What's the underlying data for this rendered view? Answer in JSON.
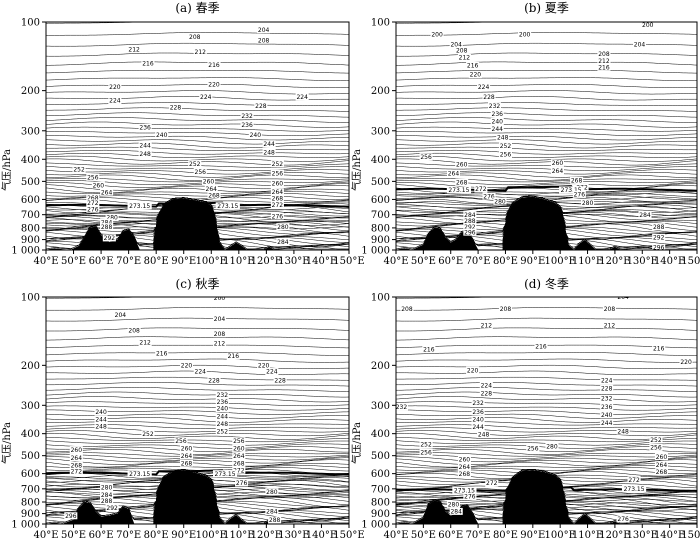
{
  "chart_data": [
    {
      "type": "contour",
      "title": "(a) 春季",
      "ylabel": "气压/hPa",
      "xlim": [
        40,
        150
      ],
      "ylim": [
        1000,
        100
      ],
      "yscale": "log",
      "xticks": [
        "40°E",
        "50°E",
        "60°E",
        "70°E",
        "80°E",
        "90°E",
        "100°E",
        "110°E",
        "120°E",
        "130°E",
        "140°E",
        "150°E"
      ],
      "yticks": [
        "100",
        "200",
        "300",
        "400",
        "500",
        "600",
        "700",
        "800",
        "900",
        "1 000"
      ],
      "contour_interval": 2,
      "tropopause_value": 273.15,
      "tropopause_pressure": 640,
      "contour_labels": [
        {
          "text": "204",
          "lon": 119,
          "p": 108
        },
        {
          "text": "208",
          "lon": 94,
          "p": 116
        },
        {
          "text": "208",
          "lon": 119,
          "p": 120
        },
        {
          "text": "212",
          "lon": 72,
          "p": 132
        },
        {
          "text": "212",
          "lon": 96,
          "p": 135
        },
        {
          "text": "216",
          "lon": 77,
          "p": 152
        },
        {
          "text": "216",
          "lon": 101,
          "p": 154
        },
        {
          "text": "220",
          "lon": 65,
          "p": 192
        },
        {
          "text": "220",
          "lon": 101,
          "p": 188
        },
        {
          "text": "224",
          "lon": 65,
          "p": 221
        },
        {
          "text": "224",
          "lon": 98,
          "p": 213
        },
        {
          "text": "224",
          "lon": 133,
          "p": 213
        },
        {
          "text": "228",
          "lon": 87,
          "p": 237
        },
        {
          "text": "228",
          "lon": 118,
          "p": 233
        },
        {
          "text": "232",
          "lon": 113,
          "p": 258
        },
        {
          "text": "236",
          "lon": 76,
          "p": 290
        },
        {
          "text": "236",
          "lon": 113,
          "p": 282
        },
        {
          "text": "240",
          "lon": 82,
          "p": 313
        },
        {
          "text": "240",
          "lon": 116,
          "p": 313
        },
        {
          "text": "244",
          "lon": 76,
          "p": 347
        },
        {
          "text": "244",
          "lon": 121,
          "p": 342
        },
        {
          "text": "248",
          "lon": 76,
          "p": 378
        },
        {
          "text": "248",
          "lon": 121,
          "p": 372
        },
        {
          "text": "252",
          "lon": 52,
          "p": 443
        },
        {
          "text": "252",
          "lon": 94,
          "p": 418
        },
        {
          "text": "252",
          "lon": 124,
          "p": 418
        },
        {
          "text": "256",
          "lon": 57,
          "p": 480
        },
        {
          "text": "256",
          "lon": 96,
          "p": 454
        },
        {
          "text": "256",
          "lon": 124,
          "p": 460
        },
        {
          "text": "260",
          "lon": 59,
          "p": 519
        },
        {
          "text": "260",
          "lon": 99,
          "p": 500
        },
        {
          "text": "260",
          "lon": 124,
          "p": 510
        },
        {
          "text": "264",
          "lon": 62,
          "p": 558
        },
        {
          "text": "264",
          "lon": 100,
          "p": 540
        },
        {
          "text": "264",
          "lon": 124,
          "p": 555
        },
        {
          "text": "268",
          "lon": 57,
          "p": 590
        },
        {
          "text": "268",
          "lon": 101,
          "p": 575
        },
        {
          "text": "268",
          "lon": 124,
          "p": 592
        },
        {
          "text": "272",
          "lon": 57,
          "p": 622
        },
        {
          "text": "272",
          "lon": 124,
          "p": 635
        },
        {
          "text": "273.15",
          "lon": 74,
          "p": 640
        },
        {
          "text": "273.15",
          "lon": 106,
          "p": 640
        },
        {
          "text": "276",
          "lon": 57,
          "p": 662
        },
        {
          "text": "276",
          "lon": 124,
          "p": 710
        },
        {
          "text": "280",
          "lon": 64,
          "p": 720
        },
        {
          "text": "280",
          "lon": 126,
          "p": 790
        },
        {
          "text": "284",
          "lon": 62,
          "p": 755
        },
        {
          "text": "284",
          "lon": 126,
          "p": 920
        },
        {
          "text": "288",
          "lon": 62,
          "p": 790
        },
        {
          "text": "292",
          "lon": 63,
          "p": 885
        }
      ]
    },
    {
      "type": "contour",
      "title": "(b) 夏季",
      "ylabel": "气压/hPa",
      "xlim": [
        40,
        150
      ],
      "ylim": [
        1000,
        100
      ],
      "yscale": "log",
      "xticks": [
        "40°E",
        "50°E",
        "60°E",
        "70°E",
        "80°E",
        "90°E",
        "100°E",
        "110°E",
        "120°E",
        "130°E",
        "140°E",
        "150°E"
      ],
      "yticks": [
        "100",
        "200",
        "300",
        "400",
        "500",
        "600",
        "700",
        "800",
        "900",
        "1 000"
      ],
      "contour_interval": 2,
      "tropopause_value": 273.15,
      "tropopause_pressure": 545,
      "contour_labels": [
        {
          "text": "200",
          "lon": 132,
          "p": 103
        },
        {
          "text": "200",
          "lon": 55,
          "p": 113
        },
        {
          "text": "200",
          "lon": 87,
          "p": 113
        },
        {
          "text": "204",
          "lon": 62,
          "p": 125
        },
        {
          "text": "204",
          "lon": 129,
          "p": 125
        },
        {
          "text": "208",
          "lon": 64,
          "p": 133
        },
        {
          "text": "208",
          "lon": 116,
          "p": 138
        },
        {
          "text": "212",
          "lon": 65,
          "p": 143
        },
        {
          "text": "212",
          "lon": 116,
          "p": 148
        },
        {
          "text": "216",
          "lon": 68,
          "p": 155
        },
        {
          "text": "216",
          "lon": 116,
          "p": 158
        },
        {
          "text": "220",
          "lon": 69,
          "p": 170
        },
        {
          "text": "224",
          "lon": 72,
          "p": 192
        },
        {
          "text": "228",
          "lon": 74,
          "p": 213
        },
        {
          "text": "232",
          "lon": 76,
          "p": 233
        },
        {
          "text": "236",
          "lon": 77,
          "p": 253
        },
        {
          "text": "240",
          "lon": 77,
          "p": 273
        },
        {
          "text": "244",
          "lon": 77,
          "p": 294
        },
        {
          "text": "248",
          "lon": 79,
          "p": 320
        },
        {
          "text": "252",
          "lon": 80,
          "p": 350
        },
        {
          "text": "256",
          "lon": 51,
          "p": 390
        },
        {
          "text": "256",
          "lon": 80,
          "p": 380
        },
        {
          "text": "260",
          "lon": 64,
          "p": 420
        },
        {
          "text": "260",
          "lon": 99,
          "p": 415
        },
        {
          "text": "264",
          "lon": 61,
          "p": 460
        },
        {
          "text": "264",
          "lon": 99,
          "p": 450
        },
        {
          "text": "268",
          "lon": 64,
          "p": 505
        },
        {
          "text": "268",
          "lon": 106,
          "p": 495
        },
        {
          "text": "272",
          "lon": 71,
          "p": 540
        },
        {
          "text": "272",
          "lon": 108,
          "p": 530
        },
        {
          "text": "273.15",
          "lon": 63,
          "p": 545
        },
        {
          "text": "273.15",
          "lon": 104,
          "p": 545
        },
        {
          "text": "276",
          "lon": 74,
          "p": 580
        },
        {
          "text": "276",
          "lon": 107,
          "p": 570
        },
        {
          "text": "280",
          "lon": 78,
          "p": 610
        },
        {
          "text": "280",
          "lon": 110,
          "p": 620
        },
        {
          "text": "284",
          "lon": 131,
          "p": 700
        },
        {
          "text": "288",
          "lon": 136,
          "p": 790
        },
        {
          "text": "292",
          "lon": 136,
          "p": 880
        },
        {
          "text": "296",
          "lon": 136,
          "p": 975
        },
        {
          "text": "284",
          "lon": 67,
          "p": 700
        },
        {
          "text": "288",
          "lon": 67,
          "p": 745
        },
        {
          "text": "292",
          "lon": 67,
          "p": 790
        },
        {
          "text": "296",
          "lon": 67,
          "p": 835
        }
      ]
    },
    {
      "type": "contour",
      "title": "(c) 秋季",
      "ylabel": "气压/hPa",
      "xlim": [
        40,
        150
      ],
      "ylim": [
        1000,
        100
      ],
      "yscale": "log",
      "xticks": [
        "40°E",
        "50°E",
        "60°E",
        "70°E",
        "80°E",
        "90°E",
        "100°E",
        "110°E",
        "120°E",
        "130°E",
        "140°E",
        "150°E"
      ],
      "yticks": [
        "100",
        "200",
        "300",
        "400",
        "500",
        "600",
        "700",
        "800",
        "900",
        "1 000"
      ],
      "contour_interval": 2,
      "tropopause_value": 273.15,
      "tropopause_pressure": 600,
      "contour_labels": [
        {
          "text": "200",
          "lon": 103,
          "p": 101
        },
        {
          "text": "204",
          "lon": 67,
          "p": 120
        },
        {
          "text": "204",
          "lon": 103,
          "p": 125
        },
        {
          "text": "208",
          "lon": 72,
          "p": 140
        },
        {
          "text": "208",
          "lon": 103,
          "p": 145
        },
        {
          "text": "212",
          "lon": 76,
          "p": 158
        },
        {
          "text": "212",
          "lon": 103,
          "p": 160
        },
        {
          "text": "216",
          "lon": 82,
          "p": 177
        },
        {
          "text": "216",
          "lon": 108,
          "p": 182
        },
        {
          "text": "220",
          "lon": 91,
          "p": 200
        },
        {
          "text": "220",
          "lon": 119,
          "p": 200
        },
        {
          "text": "224",
          "lon": 96,
          "p": 213
        },
        {
          "text": "224",
          "lon": 122,
          "p": 213
        },
        {
          "text": "228",
          "lon": 101,
          "p": 233
        },
        {
          "text": "228",
          "lon": 125,
          "p": 233
        },
        {
          "text": "232",
          "lon": 104,
          "p": 270
        },
        {
          "text": "236",
          "lon": 104,
          "p": 290
        },
        {
          "text": "240",
          "lon": 60,
          "p": 320
        },
        {
          "text": "240",
          "lon": 104,
          "p": 310
        },
        {
          "text": "244",
          "lon": 60,
          "p": 345
        },
        {
          "text": "244",
          "lon": 104,
          "p": 335
        },
        {
          "text": "248",
          "lon": 60,
          "p": 372
        },
        {
          "text": "248",
          "lon": 104,
          "p": 362
        },
        {
          "text": "252",
          "lon": 77,
          "p": 400
        },
        {
          "text": "252",
          "lon": 104,
          "p": 390
        },
        {
          "text": "256",
          "lon": 89,
          "p": 430
        },
        {
          "text": "256",
          "lon": 110,
          "p": 430
        },
        {
          "text": "260",
          "lon": 51,
          "p": 470
        },
        {
          "text": "260",
          "lon": 91,
          "p": 463
        },
        {
          "text": "260",
          "lon": 110,
          "p": 463
        },
        {
          "text": "264",
          "lon": 51,
          "p": 510
        },
        {
          "text": "264",
          "lon": 91,
          "p": 500
        },
        {
          "text": "264",
          "lon": 110,
          "p": 500
        },
        {
          "text": "268",
          "lon": 51,
          "p": 550
        },
        {
          "text": "268",
          "lon": 91,
          "p": 540
        },
        {
          "text": "268",
          "lon": 110,
          "p": 540
        },
        {
          "text": "272",
          "lon": 51,
          "p": 585
        },
        {
          "text": "272",
          "lon": 110,
          "p": 580
        },
        {
          "text": "273.15",
          "lon": 74,
          "p": 600
        },
        {
          "text": "273.15",
          "lon": 105,
          "p": 600
        },
        {
          "text": "276",
          "lon": 111,
          "p": 660
        },
        {
          "text": "280",
          "lon": 62,
          "p": 690
        },
        {
          "text": "280",
          "lon": 122,
          "p": 720
        },
        {
          "text": "284",
          "lon": 62,
          "p": 745
        },
        {
          "text": "284",
          "lon": 122,
          "p": 880
        },
        {
          "text": "288",
          "lon": 62,
          "p": 790
        },
        {
          "text": "288",
          "lon": 123,
          "p": 960
        },
        {
          "text": "292",
          "lon": 64,
          "p": 850
        },
        {
          "text": "296",
          "lon": 49,
          "p": 920
        }
      ]
    },
    {
      "type": "contour",
      "title": "(d) 冬季",
      "ylabel": "气压/hPa",
      "xlim": [
        40,
        150
      ],
      "ylim": [
        1000,
        100
      ],
      "yscale": "log",
      "xticks": [
        "40°E",
        "50°E",
        "60°E",
        "70°E",
        "80°E",
        "90°E",
        "100°E",
        "110°E",
        "120°E",
        "130°E",
        "140°E",
        "150°E"
      ],
      "yticks": [
        "100",
        "200",
        "300",
        "400",
        "500",
        "600",
        "700",
        "800",
        "900",
        "1 000"
      ],
      "contour_interval": 2,
      "tropopause_value": 273.15,
      "tropopause_pressure": 710,
      "contour_labels": [
        {
          "text": "204",
          "lon": 123,
          "p": 100
        },
        {
          "text": "208",
          "lon": 44,
          "p": 113
        },
        {
          "text": "208",
          "lon": 80,
          "p": 113
        },
        {
          "text": "208",
          "lon": 118,
          "p": 113
        },
        {
          "text": "212",
          "lon": 73,
          "p": 133
        },
        {
          "text": "212",
          "lon": 118,
          "p": 133
        },
        {
          "text": "216",
          "lon": 52,
          "p": 170
        },
        {
          "text": "216",
          "lon": 93,
          "p": 165
        },
        {
          "text": "216",
          "lon": 136,
          "p": 168
        },
        {
          "text": "220",
          "lon": 68,
          "p": 210
        },
        {
          "text": "220",
          "lon": 146,
          "p": 193
        },
        {
          "text": "224",
          "lon": 73,
          "p": 245
        },
        {
          "text": "224",
          "lon": 117,
          "p": 233
        },
        {
          "text": "228",
          "lon": 73,
          "p": 265
        },
        {
          "text": "228",
          "lon": 117,
          "p": 253
        },
        {
          "text": "232",
          "lon": 42,
          "p": 305
        },
        {
          "text": "232",
          "lon": 70,
          "p": 293
        },
        {
          "text": "232",
          "lon": 117,
          "p": 280
        },
        {
          "text": "236",
          "lon": 70,
          "p": 320
        },
        {
          "text": "236",
          "lon": 117,
          "p": 305
        },
        {
          "text": "240",
          "lon": 70,
          "p": 345
        },
        {
          "text": "240",
          "lon": 117,
          "p": 330
        },
        {
          "text": "244",
          "lon": 70,
          "p": 373
        },
        {
          "text": "244",
          "lon": 117,
          "p": 358
        },
        {
          "text": "248",
          "lon": 72,
          "p": 402
        },
        {
          "text": "248",
          "lon": 123,
          "p": 390
        },
        {
          "text": "252",
          "lon": 51,
          "p": 445
        },
        {
          "text": "252",
          "lon": 135,
          "p": 425
        },
        {
          "text": "256",
          "lon": 51,
          "p": 483
        },
        {
          "text": "256",
          "lon": 90,
          "p": 465
        },
        {
          "text": "256",
          "lon": 135,
          "p": 460
        },
        {
          "text": "260",
          "lon": 65,
          "p": 520
        },
        {
          "text": "260",
          "lon": 137,
          "p": 505
        },
        {
          "text": "264",
          "lon": 65,
          "p": 560
        },
        {
          "text": "264",
          "lon": 137,
          "p": 548
        },
        {
          "text": "268",
          "lon": 65,
          "p": 600
        },
        {
          "text": "268",
          "lon": 137,
          "p": 590
        },
        {
          "text": "272",
          "lon": 75,
          "p": 660
        },
        {
          "text": "272",
          "lon": 127,
          "p": 640
        },
        {
          "text": "273.15",
          "lon": 65,
          "p": 710
        },
        {
          "text": "273.15",
          "lon": 127,
          "p": 700
        },
        {
          "text": "276",
          "lon": 67,
          "p": 755
        },
        {
          "text": "276",
          "lon": 123,
          "p": 950
        },
        {
          "text": "280",
          "lon": 61,
          "p": 820
        },
        {
          "text": "284",
          "lon": 62,
          "p": 880
        },
        {
          "text": "280",
          "lon": 97,
          "p": 455
        }
      ]
    }
  ]
}
